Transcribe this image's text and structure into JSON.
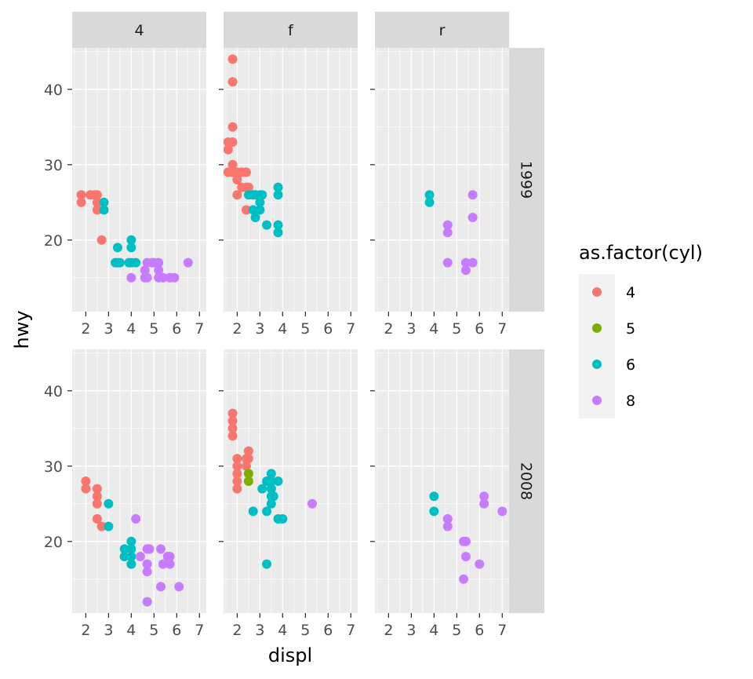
{
  "chart_data": {
    "type": "scatter",
    "xlabel": "displ",
    "ylabel": "hwy",
    "xlim": [
      1.4,
      7.3
    ],
    "ylim": [
      10.5,
      45.5
    ],
    "x_ticks": [
      2,
      3,
      4,
      5,
      6,
      7
    ],
    "y_ticks": [
      20,
      30,
      40
    ],
    "grid": true,
    "facet_columns": [
      "4",
      "f",
      "r"
    ],
    "facet_rows": [
      "1999",
      "2008"
    ],
    "legend": {
      "title": "as.factor(cyl)",
      "position": "right",
      "entries": [
        {
          "label": "4",
          "color": "#F8766D"
        },
        {
          "label": "5",
          "color": "#7CAE00"
        },
        {
          "label": "6",
          "color": "#00BFC4"
        },
        {
          "label": "8",
          "color": "#C77CFF"
        }
      ]
    },
    "panels": [
      {
        "column": "4",
        "row": "1999",
        "points": [
          [
            1.8,
            26,
            "4"
          ],
          [
            1.8,
            25,
            "4"
          ],
          [
            2.2,
            26,
            "4"
          ],
          [
            2.4,
            26,
            "4"
          ],
          [
            2.5,
            26,
            "4"
          ],
          [
            2.5,
            25,
            "4"
          ],
          [
            2.5,
            24,
            "4"
          ],
          [
            2.7,
            20,
            "4"
          ],
          [
            2.8,
            25,
            "6"
          ],
          [
            2.8,
            24,
            "6"
          ],
          [
            3.3,
            17,
            "6"
          ],
          [
            3.4,
            17,
            "6"
          ],
          [
            3.4,
            19,
            "6"
          ],
          [
            3.5,
            17,
            "6"
          ],
          [
            3.9,
            17,
            "6"
          ],
          [
            4.0,
            19,
            "6"
          ],
          [
            4.0,
            20,
            "6"
          ],
          [
            4.0,
            17,
            "6"
          ],
          [
            4.2,
            17,
            "6"
          ],
          [
            4.0,
            15,
            "8"
          ],
          [
            4.6,
            16,
            "8"
          ],
          [
            4.6,
            15,
            "8"
          ],
          [
            4.7,
            17,
            "8"
          ],
          [
            4.7,
            15,
            "8"
          ],
          [
            4.9,
            17,
            "8"
          ],
          [
            5.0,
            17,
            "8"
          ],
          [
            5.2,
            16,
            "8"
          ],
          [
            5.2,
            15,
            "8"
          ],
          [
            5.2,
            17,
            "8"
          ],
          [
            5.4,
            15,
            "8"
          ],
          [
            5.7,
            15,
            "8"
          ],
          [
            5.9,
            15,
            "8"
          ],
          [
            6.5,
            17,
            "8"
          ]
        ]
      },
      {
        "column": "f",
        "row": "1999",
        "points": [
          [
            1.8,
            44,
            "4"
          ],
          [
            1.8,
            41,
            "4"
          ],
          [
            1.8,
            35,
            "4"
          ],
          [
            1.6,
            33,
            "4"
          ],
          [
            1.8,
            33,
            "4"
          ],
          [
            1.6,
            32,
            "4"
          ],
          [
            1.6,
            29,
            "4"
          ],
          [
            1.8,
            29,
            "4"
          ],
          [
            1.8,
            30,
            "4"
          ],
          [
            1.9,
            29,
            "4"
          ],
          [
            2.0,
            29,
            "4"
          ],
          [
            2.0,
            28,
            "4"
          ],
          [
            2.0,
            26,
            "4"
          ],
          [
            2.2,
            27,
            "4"
          ],
          [
            2.2,
            29,
            "4"
          ],
          [
            2.4,
            29,
            "4"
          ],
          [
            2.4,
            27,
            "4"
          ],
          [
            2.4,
            24,
            "4"
          ],
          [
            2.5,
            27,
            "4"
          ],
          [
            2.5,
            26,
            "6"
          ],
          [
            2.7,
            26,
            "6"
          ],
          [
            2.8,
            26,
            "6"
          ],
          [
            2.7,
            24,
            "6"
          ],
          [
            2.8,
            23,
            "6"
          ],
          [
            3.0,
            24,
            "6"
          ],
          [
            3.0,
            25,
            "6"
          ],
          [
            3.0,
            26,
            "6"
          ],
          [
            3.1,
            26,
            "6"
          ],
          [
            3.3,
            22,
            "6"
          ],
          [
            3.8,
            27,
            "6"
          ],
          [
            3.8,
            26,
            "6"
          ],
          [
            3.8,
            22,
            "6"
          ],
          [
            3.8,
            21,
            "6"
          ]
        ]
      },
      {
        "column": "r",
        "row": "1999",
        "points": [
          [
            3.8,
            26,
            "6"
          ],
          [
            3.8,
            25,
            "6"
          ],
          [
            4.6,
            22,
            "8"
          ],
          [
            4.6,
            21,
            "8"
          ],
          [
            4.6,
            17,
            "8"
          ],
          [
            5.4,
            17,
            "8"
          ],
          [
            5.4,
            16,
            "8"
          ],
          [
            5.7,
            26,
            "8"
          ],
          [
            5.7,
            23,
            "8"
          ],
          [
            5.7,
            17,
            "8"
          ]
        ]
      },
      {
        "column": "4",
        "row": "2008",
        "points": [
          [
            2.0,
            28,
            "4"
          ],
          [
            2.0,
            27,
            "4"
          ],
          [
            2.5,
            27,
            "4"
          ],
          [
            2.5,
            26,
            "4"
          ],
          [
            2.5,
            25,
            "4"
          ],
          [
            2.5,
            23,
            "4"
          ],
          [
            2.7,
            22,
            "4"
          ],
          [
            3.0,
            25,
            "6"
          ],
          [
            3.0,
            22,
            "6"
          ],
          [
            3.7,
            19,
            "6"
          ],
          [
            3.7,
            18,
            "6"
          ],
          [
            4.0,
            20,
            "6"
          ],
          [
            4.0,
            19,
            "6"
          ],
          [
            4.0,
            18,
            "6"
          ],
          [
            4.0,
            17,
            "6"
          ],
          [
            4.2,
            23,
            "8"
          ],
          [
            4.4,
            18,
            "8"
          ],
          [
            4.7,
            19,
            "8"
          ],
          [
            4.7,
            17,
            "8"
          ],
          [
            4.7,
            12,
            "8"
          ],
          [
            4.8,
            19,
            "8"
          ],
          [
            4.7,
            16,
            "8"
          ],
          [
            5.3,
            19,
            "8"
          ],
          [
            5.3,
            14,
            "8"
          ],
          [
            5.4,
            17,
            "8"
          ],
          [
            5.6,
            18,
            "8"
          ],
          [
            5.7,
            17,
            "8"
          ],
          [
            5.7,
            18,
            "8"
          ],
          [
            6.1,
            14,
            "8"
          ]
        ]
      },
      {
        "column": "f",
        "row": "2008",
        "points": [
          [
            1.8,
            37,
            "4"
          ],
          [
            1.8,
            36,
            "4"
          ],
          [
            1.8,
            35,
            "4"
          ],
          [
            1.8,
            34,
            "4"
          ],
          [
            2.0,
            31,
            "4"
          ],
          [
            2.0,
            30,
            "4"
          ],
          [
            2.0,
            29,
            "4"
          ],
          [
            2.0,
            28,
            "4"
          ],
          [
            2.0,
            27,
            "4"
          ],
          [
            2.4,
            31,
            "4"
          ],
          [
            2.4,
            30,
            "4"
          ],
          [
            2.5,
            32,
            "4"
          ],
          [
            2.5,
            31,
            "4"
          ],
          [
            2.5,
            29,
            "5"
          ],
          [
            2.5,
            28,
            "5"
          ],
          [
            2.7,
            24,
            "6"
          ],
          [
            3.1,
            27,
            "6"
          ],
          [
            3.3,
            28,
            "6"
          ],
          [
            3.3,
            24,
            "6"
          ],
          [
            3.3,
            17,
            "6"
          ],
          [
            3.5,
            29,
            "6"
          ],
          [
            3.5,
            28,
            "6"
          ],
          [
            3.5,
            27,
            "6"
          ],
          [
            3.5,
            26,
            "6"
          ],
          [
            3.5,
            25,
            "6"
          ],
          [
            3.6,
            26,
            "6"
          ],
          [
            3.8,
            28,
            "6"
          ],
          [
            3.8,
            23,
            "6"
          ],
          [
            4.0,
            23,
            "6"
          ],
          [
            5.3,
            25,
            "8"
          ]
        ]
      },
      {
        "column": "r",
        "row": "2008",
        "points": [
          [
            4.0,
            26,
            "6"
          ],
          [
            4.0,
            24,
            "6"
          ],
          [
            4.6,
            23,
            "8"
          ],
          [
            4.6,
            22,
            "8"
          ],
          [
            5.3,
            20,
            "8"
          ],
          [
            5.3,
            15,
            "8"
          ],
          [
            5.4,
            20,
            "8"
          ],
          [
            5.4,
            18,
            "8"
          ],
          [
            6.0,
            17,
            "8"
          ],
          [
            6.2,
            26,
            "8"
          ],
          [
            6.2,
            25,
            "8"
          ],
          [
            7.0,
            24,
            "8"
          ]
        ]
      }
    ]
  }
}
